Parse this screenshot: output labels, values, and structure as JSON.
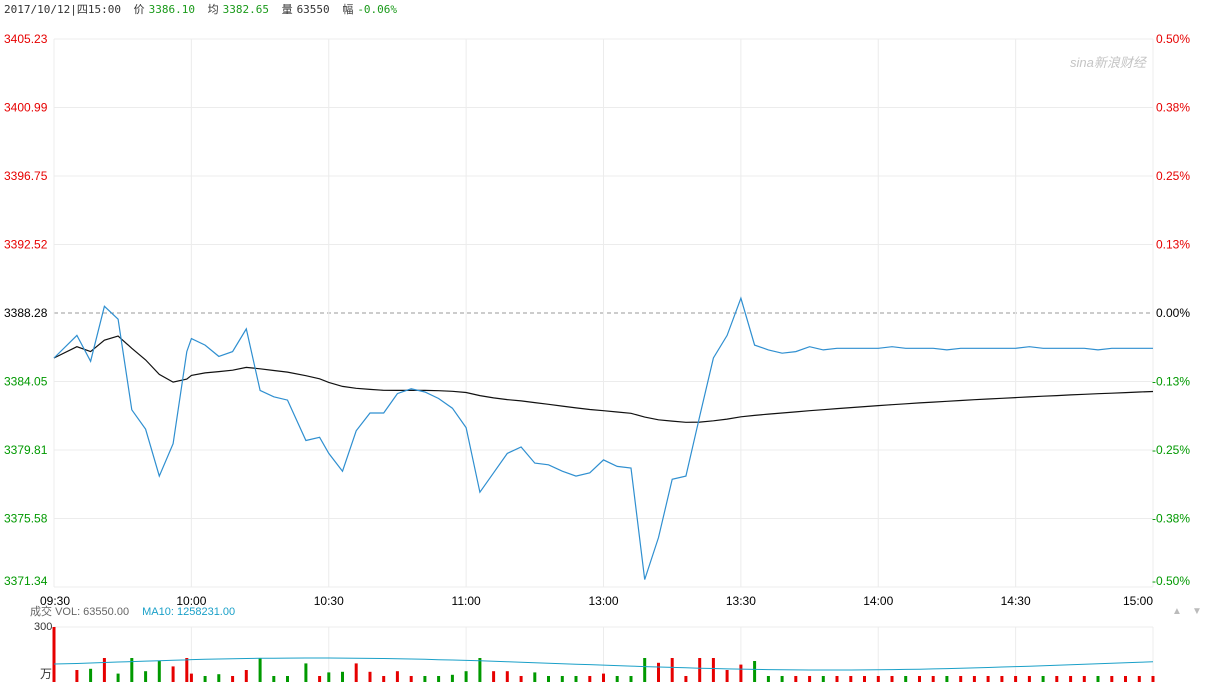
{
  "header": {
    "datetime": "2017/10/12|四15:00",
    "price_label": "价",
    "price": "3386.10",
    "avg_label": "均",
    "avg": "3382.65",
    "vol_label": "量",
    "vol": "63550",
    "chg_label": "幅",
    "chg": "-0.06%"
  },
  "watermark": "sina新浪财经",
  "volume_panel": {
    "label": "成交",
    "vol_text": "VOL: 63550.00",
    "ma_text": "MA10: 1258231.00",
    "unit_top": "300",
    "unit_bottom": "万"
  },
  "colors": {
    "price_line": "#2f8fd0",
    "avg_line": "#111111",
    "up": "#e60000",
    "down": "#009900",
    "grid": "#ececec",
    "ma_line": "#1aa0c8"
  },
  "chart_data": {
    "type": "line",
    "title": "",
    "xlabel": "",
    "ylabel": "",
    "ylim": [
      3371.34,
      3405.23
    ],
    "prev_close": 3388.28,
    "y_ticks_left": [
      "3405.23",
      "3400.99",
      "3396.75",
      "3392.52",
      "3388.28",
      "3384.05",
      "3379.81",
      "3375.58",
      "3371.34"
    ],
    "y_ticks_right": [
      "0.50%",
      "0.38%",
      "0.25%",
      "0.13%",
      "0.00%",
      "-0.13%",
      "-0.25%",
      "-0.38%",
      "-0.50%"
    ],
    "x_ticks": [
      "09:30",
      "10:00",
      "10:30",
      "11:00",
      "13:00",
      "13:30",
      "14:00",
      "14:30",
      "15:00"
    ],
    "time_index": [
      0,
      5,
      8,
      11,
      14,
      17,
      20,
      23,
      26,
      29,
      30,
      33,
      36,
      39,
      42,
      45,
      48,
      51,
      55,
      58,
      60,
      63,
      66,
      69,
      72,
      75,
      78,
      81,
      84,
      87,
      90,
      93,
      96,
      99,
      102,
      105,
      108,
      111,
      114,
      117,
      120,
      123,
      126,
      129,
      132,
      135,
      138,
      141,
      144,
      147,
      150,
      153,
      156,
      159,
      162,
      165,
      168,
      171,
      174,
      177,
      180,
      183,
      186,
      189,
      192,
      195,
      198,
      201,
      204,
      207,
      210,
      213,
      216,
      219,
      222,
      225,
      228,
      231,
      234,
      237,
      240
    ],
    "series": [
      {
        "values": [
          3385.5,
          3386.9,
          3385.3,
          3388.7,
          3387.9,
          3382.3,
          3381.1,
          3378.2,
          3380.2,
          3385.9,
          3386.7,
          3386.3,
          3385.6,
          3385.9,
          3387.3,
          3383.5,
          3383.1,
          3382.9,
          3380.4,
          3380.6,
          3379.6,
          3378.5,
          3381.0,
          3382.1,
          3382.1,
          3383.3,
          3383.6,
          3383.4,
          3383.0,
          3382.4,
          3381.2,
          3377.2,
          3378.4,
          3379.6,
          3380.0,
          3379.0,
          3378.9,
          3378.5,
          3378.2,
          3378.4,
          3379.2,
          3378.8,
          3378.7,
          3371.8,
          3374.4,
          3378.0,
          3378.2,
          3381.9,
          3385.5,
          3386.9,
          3389.2,
          3386.3,
          3386.0,
          3385.8,
          3385.9,
          3386.2,
          3386.0,
          3386.1,
          3386.1,
          3386.1,
          3386.1,
          3386.2,
          3386.1,
          3386.1,
          3386.1,
          3386.0,
          3386.1,
          3386.1,
          3386.1,
          3386.1,
          3386.1,
          3386.2,
          3386.1,
          3386.1,
          3386.1,
          3386.1,
          3386.0,
          3386.1,
          3386.1,
          3386.1,
          3386.1
        ]
      }
    ]
  }
}
